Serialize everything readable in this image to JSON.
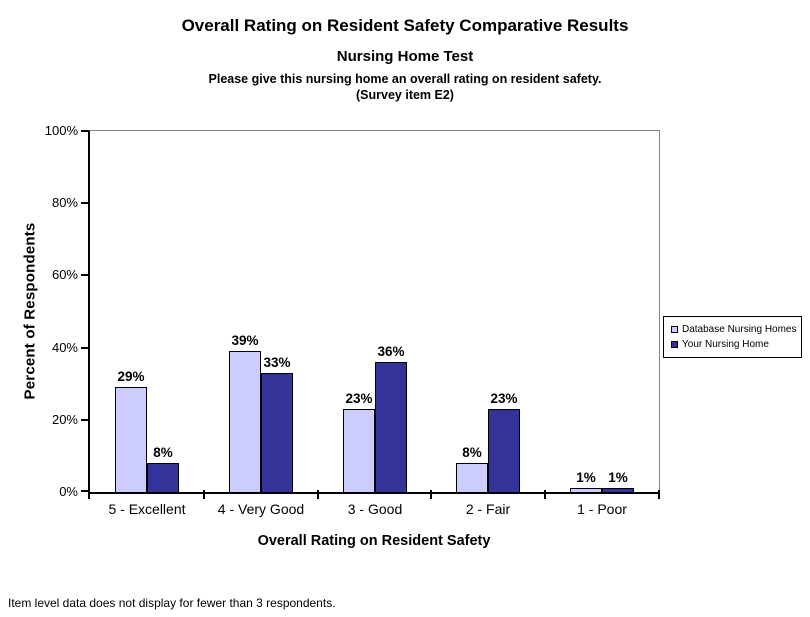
{
  "header": {
    "question": "Please give this nursing home an overall rating on resident safety.",
    "survey_item": "(Survey item E2)"
  },
  "chart_data": {
    "type": "bar",
    "title": "Overall Rating on Resident Safety Comparative Results",
    "subtitle": "Nursing Home Test",
    "categories": [
      "5 - Excellent",
      "4 - Very Good",
      "3 - Good",
      "2 - Fair",
      "1 - Poor"
    ],
    "series": [
      {
        "name": "Database Nursing Homes",
        "color": "#CCCCFF",
        "values": [
          29,
          39,
          23,
          8,
          1
        ]
      },
      {
        "name": "Your Nursing Home",
        "color": "#333399",
        "values": [
          8,
          33,
          36,
          23,
          1
        ]
      }
    ],
    "data_labels": true,
    "data_label_suffix": "%",
    "xlabel": "Overall Rating on Resident Safety",
    "ylabel": "Percent of Respondents",
    "ylim": [
      0,
      100
    ],
    "ytick_interval": 20,
    "ytick_labels": [
      "0%",
      "20%",
      "40%",
      "60%",
      "80%",
      "100%"
    ],
    "grid": false,
    "legend_position": "right",
    "bar_border_color": "#000000",
    "plot_border_color": "#848284",
    "axis_color": "#000000"
  },
  "footer": {
    "note": "Item level data does not display for fewer than 3 respondents."
  }
}
